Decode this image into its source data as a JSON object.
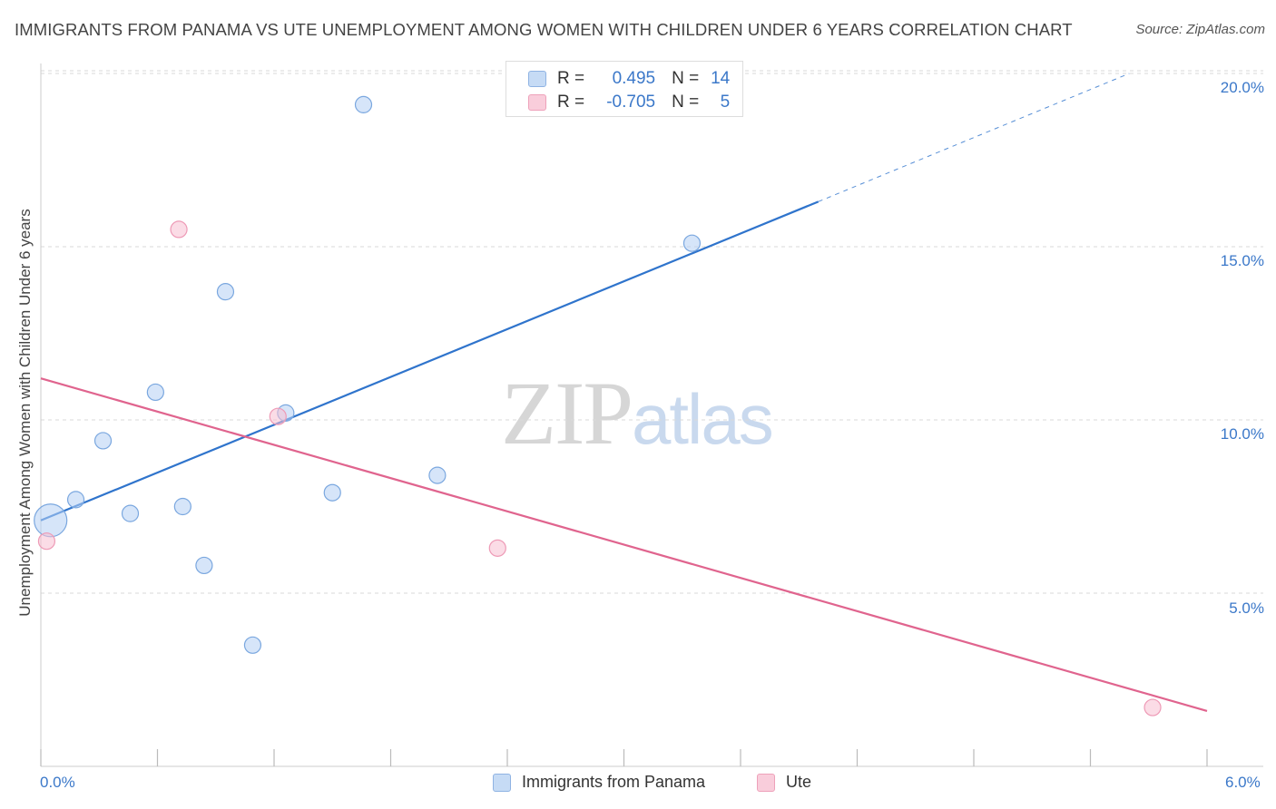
{
  "header": {
    "title": "IMMIGRANTS FROM PANAMA VS UTE UNEMPLOYMENT AMONG WOMEN WITH CHILDREN UNDER 6 YEARS CORRELATION CHART",
    "source": "Source: ZipAtlas.com"
  },
  "watermark": {
    "zip": "ZIP",
    "atlas": "atlas"
  },
  "legend_top": {
    "rows": [
      {
        "r_label": "R =",
        "r_value": "0.495",
        "n_label": "N =",
        "n_value": "14",
        "color": "#a9c8f0"
      },
      {
        "r_label": "R =",
        "r_value": "-0.705",
        "n_label": "N =",
        "n_value": "5",
        "color": "#f6b8cb"
      }
    ]
  },
  "legend_bottom": {
    "series1": "Immigrants from Panama",
    "series2": "Ute"
  },
  "chart_data": {
    "type": "scatter",
    "title": "IMMIGRANTS FROM PANAMA VS UTE UNEMPLOYMENT AMONG WOMEN WITH CHILDREN UNDER 6 YEARS CORRELATION CHART",
    "xlabel": "",
    "ylabel": "Unemployment Among Women with Children Under 6 years",
    "xlim": [
      0,
      6.0
    ],
    "ylim": [
      0,
      20.5
    ],
    "x_tick_labels": [
      "0.0%",
      "6.0%"
    ],
    "y_ticks": [
      5,
      10,
      15,
      20
    ],
    "y_tick_labels": [
      "5.0%",
      "10.0%",
      "15.0%",
      "20.0%"
    ],
    "grid": true,
    "series": [
      {
        "name": "Immigrants from Panama",
        "color": "#a9c8f0",
        "line_color": "#2f74cc",
        "points": [
          {
            "x": 0.05,
            "y": 7.1,
            "big": true
          },
          {
            "x": 0.18,
            "y": 7.7
          },
          {
            "x": 0.32,
            "y": 9.4
          },
          {
            "x": 0.46,
            "y": 7.3
          },
          {
            "x": 0.59,
            "y": 10.8
          },
          {
            "x": 0.73,
            "y": 7.5
          },
          {
            "x": 0.84,
            "y": 5.8
          },
          {
            "x": 0.95,
            "y": 13.7
          },
          {
            "x": 1.09,
            "y": 3.5
          },
          {
            "x": 1.26,
            "y": 10.2
          },
          {
            "x": 1.5,
            "y": 7.9
          },
          {
            "x": 1.66,
            "y": 19.1
          },
          {
            "x": 2.04,
            "y": 8.4
          },
          {
            "x": 3.35,
            "y": 15.1
          }
        ],
        "trend": {
          "x0": 0.0,
          "y0": 7.1,
          "x1": 4.0,
          "y1": 16.3,
          "dash_x1": 5.6,
          "dash_y1": 20.0
        }
      },
      {
        "name": "Ute",
        "color": "#f6b8cb",
        "line_color": "#e0648e",
        "points": [
          {
            "x": 0.03,
            "y": 6.5
          },
          {
            "x": 0.71,
            "y": 15.5
          },
          {
            "x": 1.22,
            "y": 10.1
          },
          {
            "x": 2.35,
            "y": 6.3
          },
          {
            "x": 5.72,
            "y": 1.7
          }
        ],
        "trend": {
          "x0": 0.0,
          "y0": 11.2,
          "x1": 6.0,
          "y1": 1.6
        }
      }
    ]
  }
}
